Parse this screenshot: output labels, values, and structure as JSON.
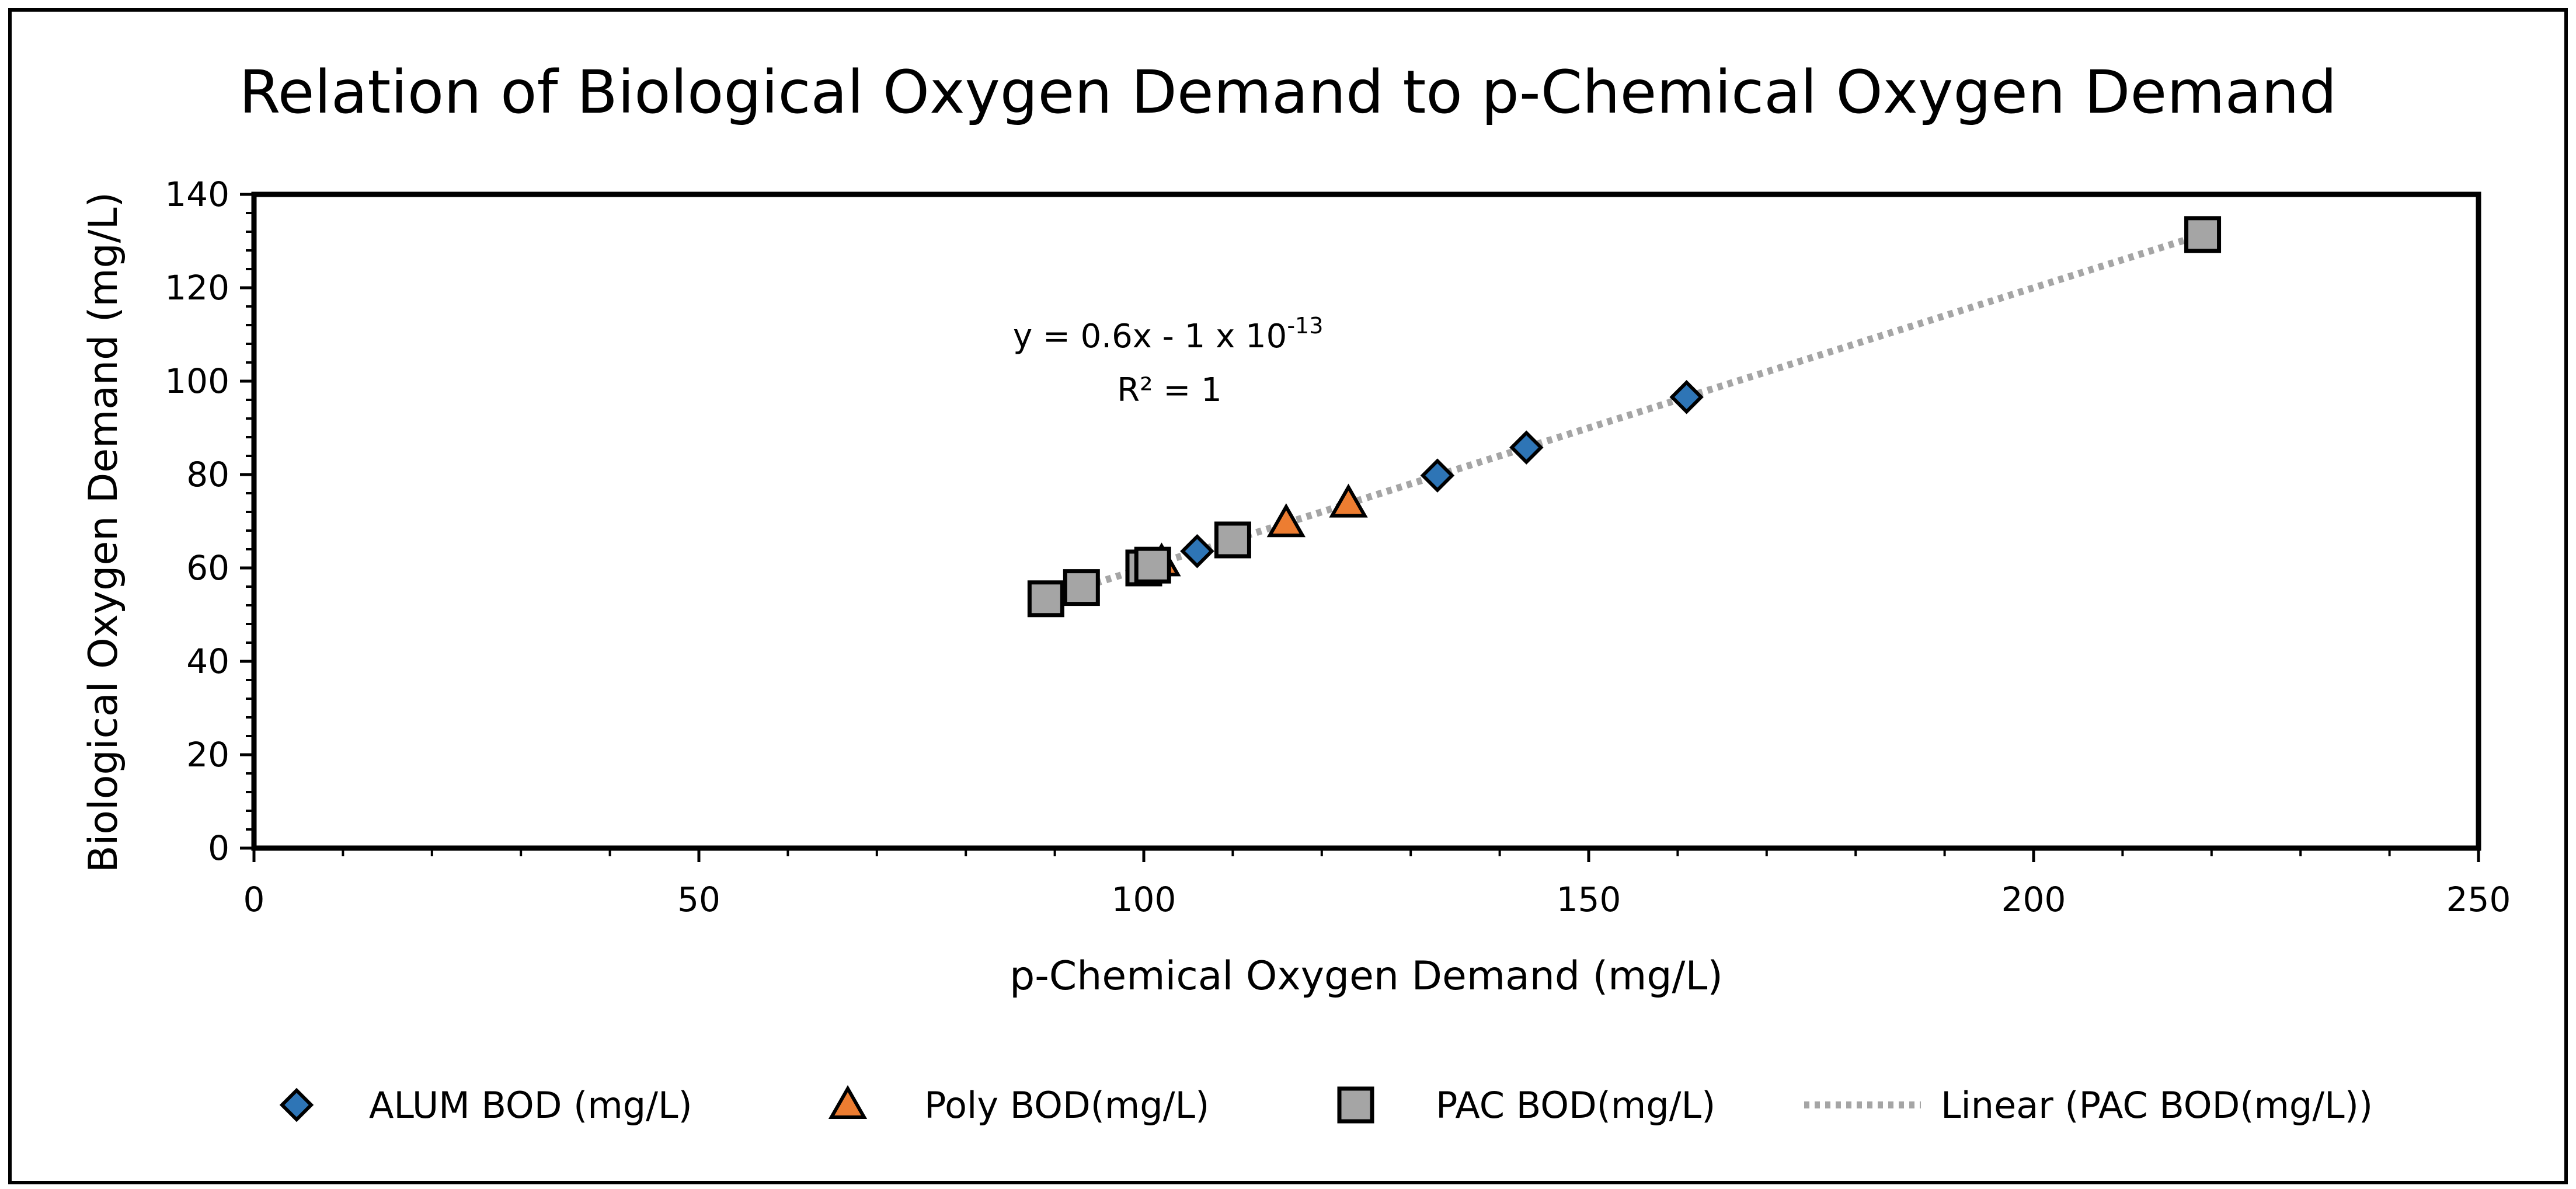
{
  "chart_data": {
    "type": "scatter",
    "title": "Relation of Biological Oxygen Demand to p-Chemical Oxygen Demand",
    "xlabel": "p-Chemical Oxygen Demand (mg/L)",
    "ylabel": "Biological Oxygen Demand (mg/L)",
    "xlim": [
      0,
      250
    ],
    "ylim": [
      0,
      140
    ],
    "x_ticks": [
      0,
      50,
      100,
      150,
      200,
      250
    ],
    "y_ticks": [
      0,
      20,
      40,
      60,
      80,
      100,
      120,
      140
    ],
    "grid": false,
    "legend_position": "bottom",
    "series": [
      {
        "name": "ALUM BOD (mg/L)",
        "marker": "diamond",
        "color": "#2e75b6",
        "points": [
          [
            101,
            60.6
          ],
          [
            106,
            63.6
          ],
          [
            110,
            66
          ],
          [
            133,
            79.8
          ],
          [
            143,
            85.8
          ],
          [
            161,
            96.6
          ]
        ]
      },
      {
        "name": "Poly BOD(mg/L)",
        "marker": "triangle",
        "color": "#ed7d31",
        "points": [
          [
            102,
            61.2
          ],
          [
            116,
            69.6
          ],
          [
            123,
            73.8
          ]
        ]
      },
      {
        "name": "PAC BOD(mg/L)",
        "marker": "square",
        "color": "#a5a5a5",
        "points": [
          [
            89,
            53.4
          ],
          [
            93,
            55.8
          ],
          [
            100,
            60
          ],
          [
            101,
            60.6
          ],
          [
            110,
            66
          ],
          [
            219,
            131.4
          ]
        ]
      }
    ],
    "trendline": {
      "name": "Linear (PAC BOD(mg/L))",
      "color": "#a5a5a5",
      "slope": 0.6,
      "intercept": 0,
      "x_range": [
        89,
        219
      ],
      "equation_main": "y = 0.6x - 1 x 10",
      "equation_exp": "-13",
      "r2": "R² = 1"
    }
  }
}
